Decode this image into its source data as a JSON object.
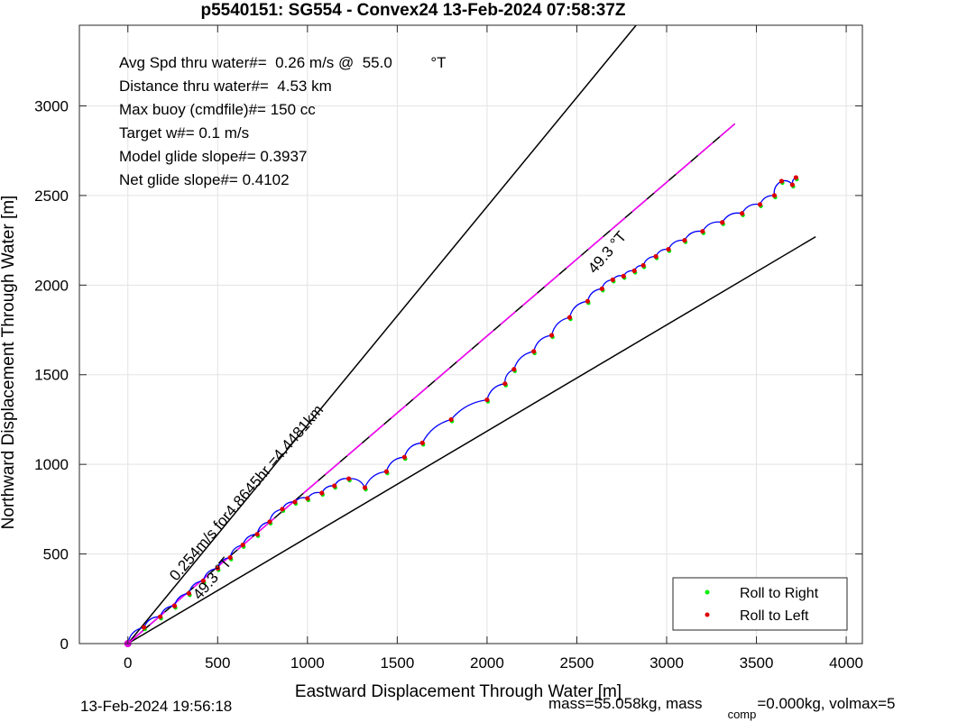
{
  "chart_data": {
    "type": "line",
    "title": "p5540151: SG554 - Convex24 13-Feb-2024 07:58:37Z",
    "xlabel": "Eastward Displacement Through Water [m]",
    "ylabel": "Northward Displacement Through Water [m]",
    "xlim": [
      -270,
      4090
    ],
    "ylim": [
      0,
      3450
    ],
    "x_ticks": [
      0,
      500,
      1000,
      1500,
      2000,
      2500,
      3000,
      3500,
      4000
    ],
    "y_ticks": [
      0,
      500,
      1000,
      1500,
      2000,
      2500,
      3000
    ],
    "x_tick_labels": [
      "0",
      "500",
      "1000",
      "1500",
      "2000",
      "2500",
      "3000",
      "3500",
      "4000"
    ],
    "y_tick_labels": [
      "0",
      "500",
      "1000",
      "1500",
      "2000",
      "2500",
      "3000"
    ],
    "grid": true,
    "legend_position": "bottom-right",
    "legend": [
      {
        "label": "Roll to Right",
        "color": "#00ee00"
      },
      {
        "label": "Roll to Left",
        "color": "#dd0000"
      }
    ],
    "info_lines": [
      "Avg Spd thru water#=  0.26 m/s @  55.0         °T",
      "Distance thru water#=  4.53 km",
      "Max buoy (cmdfile)#= 150 cc",
      "Target w#= 0.1 m/s",
      "Model glide slope#= 0.3937",
      "Net glide slope#= 0.4102"
    ],
    "annotations": [
      {
        "text": "0.254m/s for4.8645hr =4.4481km",
        "x": 270,
        "y": 345,
        "angle_deg": 49.3
      },
      {
        "text": "49.3 °T",
        "x": 2600,
        "y": 2060,
        "angle_deg": 49.3
      },
      {
        "text": "49.3 °T",
        "x": 400,
        "y": 240,
        "angle_deg": 49.3
      }
    ],
    "reference_lines": [
      {
        "name": "upper bound",
        "color": "#000000",
        "x": [
          0,
          2830
        ],
        "y": [
          0,
          3450
        ]
      },
      {
        "name": "lower bound",
        "color": "#000000",
        "x": [
          0,
          3830
        ],
        "y": [
          0,
          2270
        ]
      },
      {
        "name": "average heading",
        "color": "#000000",
        "dashed": true,
        "x": [
          0,
          3380
        ],
        "y": [
          0,
          2900
        ]
      },
      {
        "name": "target heading",
        "color": "#ff00ff",
        "dashed": true,
        "x": [
          0,
          3380
        ],
        "y": [
          0,
          2900
        ]
      }
    ],
    "series": [
      {
        "color": "#0000ff",
        "x": [
          0,
          90,
          180,
          260,
          340,
          420,
          500,
          570,
          640,
          720,
          790,
          860,
          930,
          1000,
          1080,
          1150,
          1230,
          1320,
          1440,
          1540,
          1640,
          1800,
          2000,
          2100,
          2150,
          2260,
          2360,
          2460,
          2560,
          2640,
          2700,
          2760,
          2820,
          2870,
          2940,
          3010,
          3100,
          3200,
          3310,
          3420,
          3520,
          3600,
          3640,
          3700,
          3720
        ],
        "y": [
          0,
          90,
          150,
          210,
          280,
          350,
          420,
          480,
          550,
          610,
          680,
          750,
          790,
          810,
          840,
          880,
          920,
          870,
          960,
          1040,
          1120,
          1250,
          1360,
          1450,
          1530,
          1630,
          1720,
          1820,
          1910,
          1980,
          2030,
          2050,
          2080,
          2110,
          2160,
          2200,
          2250,
          2300,
          2350,
          2400,
          2450,
          2500,
          2580,
          2560,
          2600
        ]
      }
    ]
  },
  "footer": {
    "timestamp": "13-Feb-2024 19:56:18",
    "mass_text": "mass=55.058kg, mass",
    "mass_sub": "comp",
    "mass_tail": "=0.000kg, volmax=5"
  }
}
